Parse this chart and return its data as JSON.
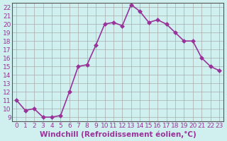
{
  "x": [
    0,
    1,
    2,
    3,
    4,
    5,
    6,
    7,
    8,
    9,
    10,
    11,
    12,
    13,
    14,
    15,
    16,
    17,
    18,
    19,
    20,
    21,
    22,
    23
  ],
  "y": [
    11,
    9.8,
    10,
    9,
    9,
    9.2,
    12,
    15,
    15.2,
    17.5,
    20,
    20.2,
    19.8,
    22.3,
    21.5,
    20.2,
    20.5,
    20,
    19,
    18,
    18,
    16,
    15,
    14.5
  ],
  "line_color": "#993399",
  "marker_color": "#993399",
  "bg_color": "#d0f0f0",
  "grid_color": "#aaaaaa",
  "xlabel": "Windchill (Refroidissement éolien,°C)",
  "xlim": [
    -0.5,
    23.5
  ],
  "ylim": [
    8.5,
    22.5
  ],
  "yticks": [
    9,
    10,
    11,
    12,
    13,
    14,
    15,
    16,
    17,
    18,
    19,
    20,
    21,
    22
  ],
  "xticks": [
    0,
    1,
    2,
    3,
    4,
    5,
    6,
    7,
    8,
    9,
    10,
    11,
    12,
    13,
    14,
    15,
    16,
    17,
    18,
    19,
    20,
    21,
    22,
    23
  ],
  "xlabel_fontsize": 7.5,
  "tick_fontsize": 6.5,
  "marker_size": 3,
  "line_width": 1.2,
  "spine_color": "#555555"
}
